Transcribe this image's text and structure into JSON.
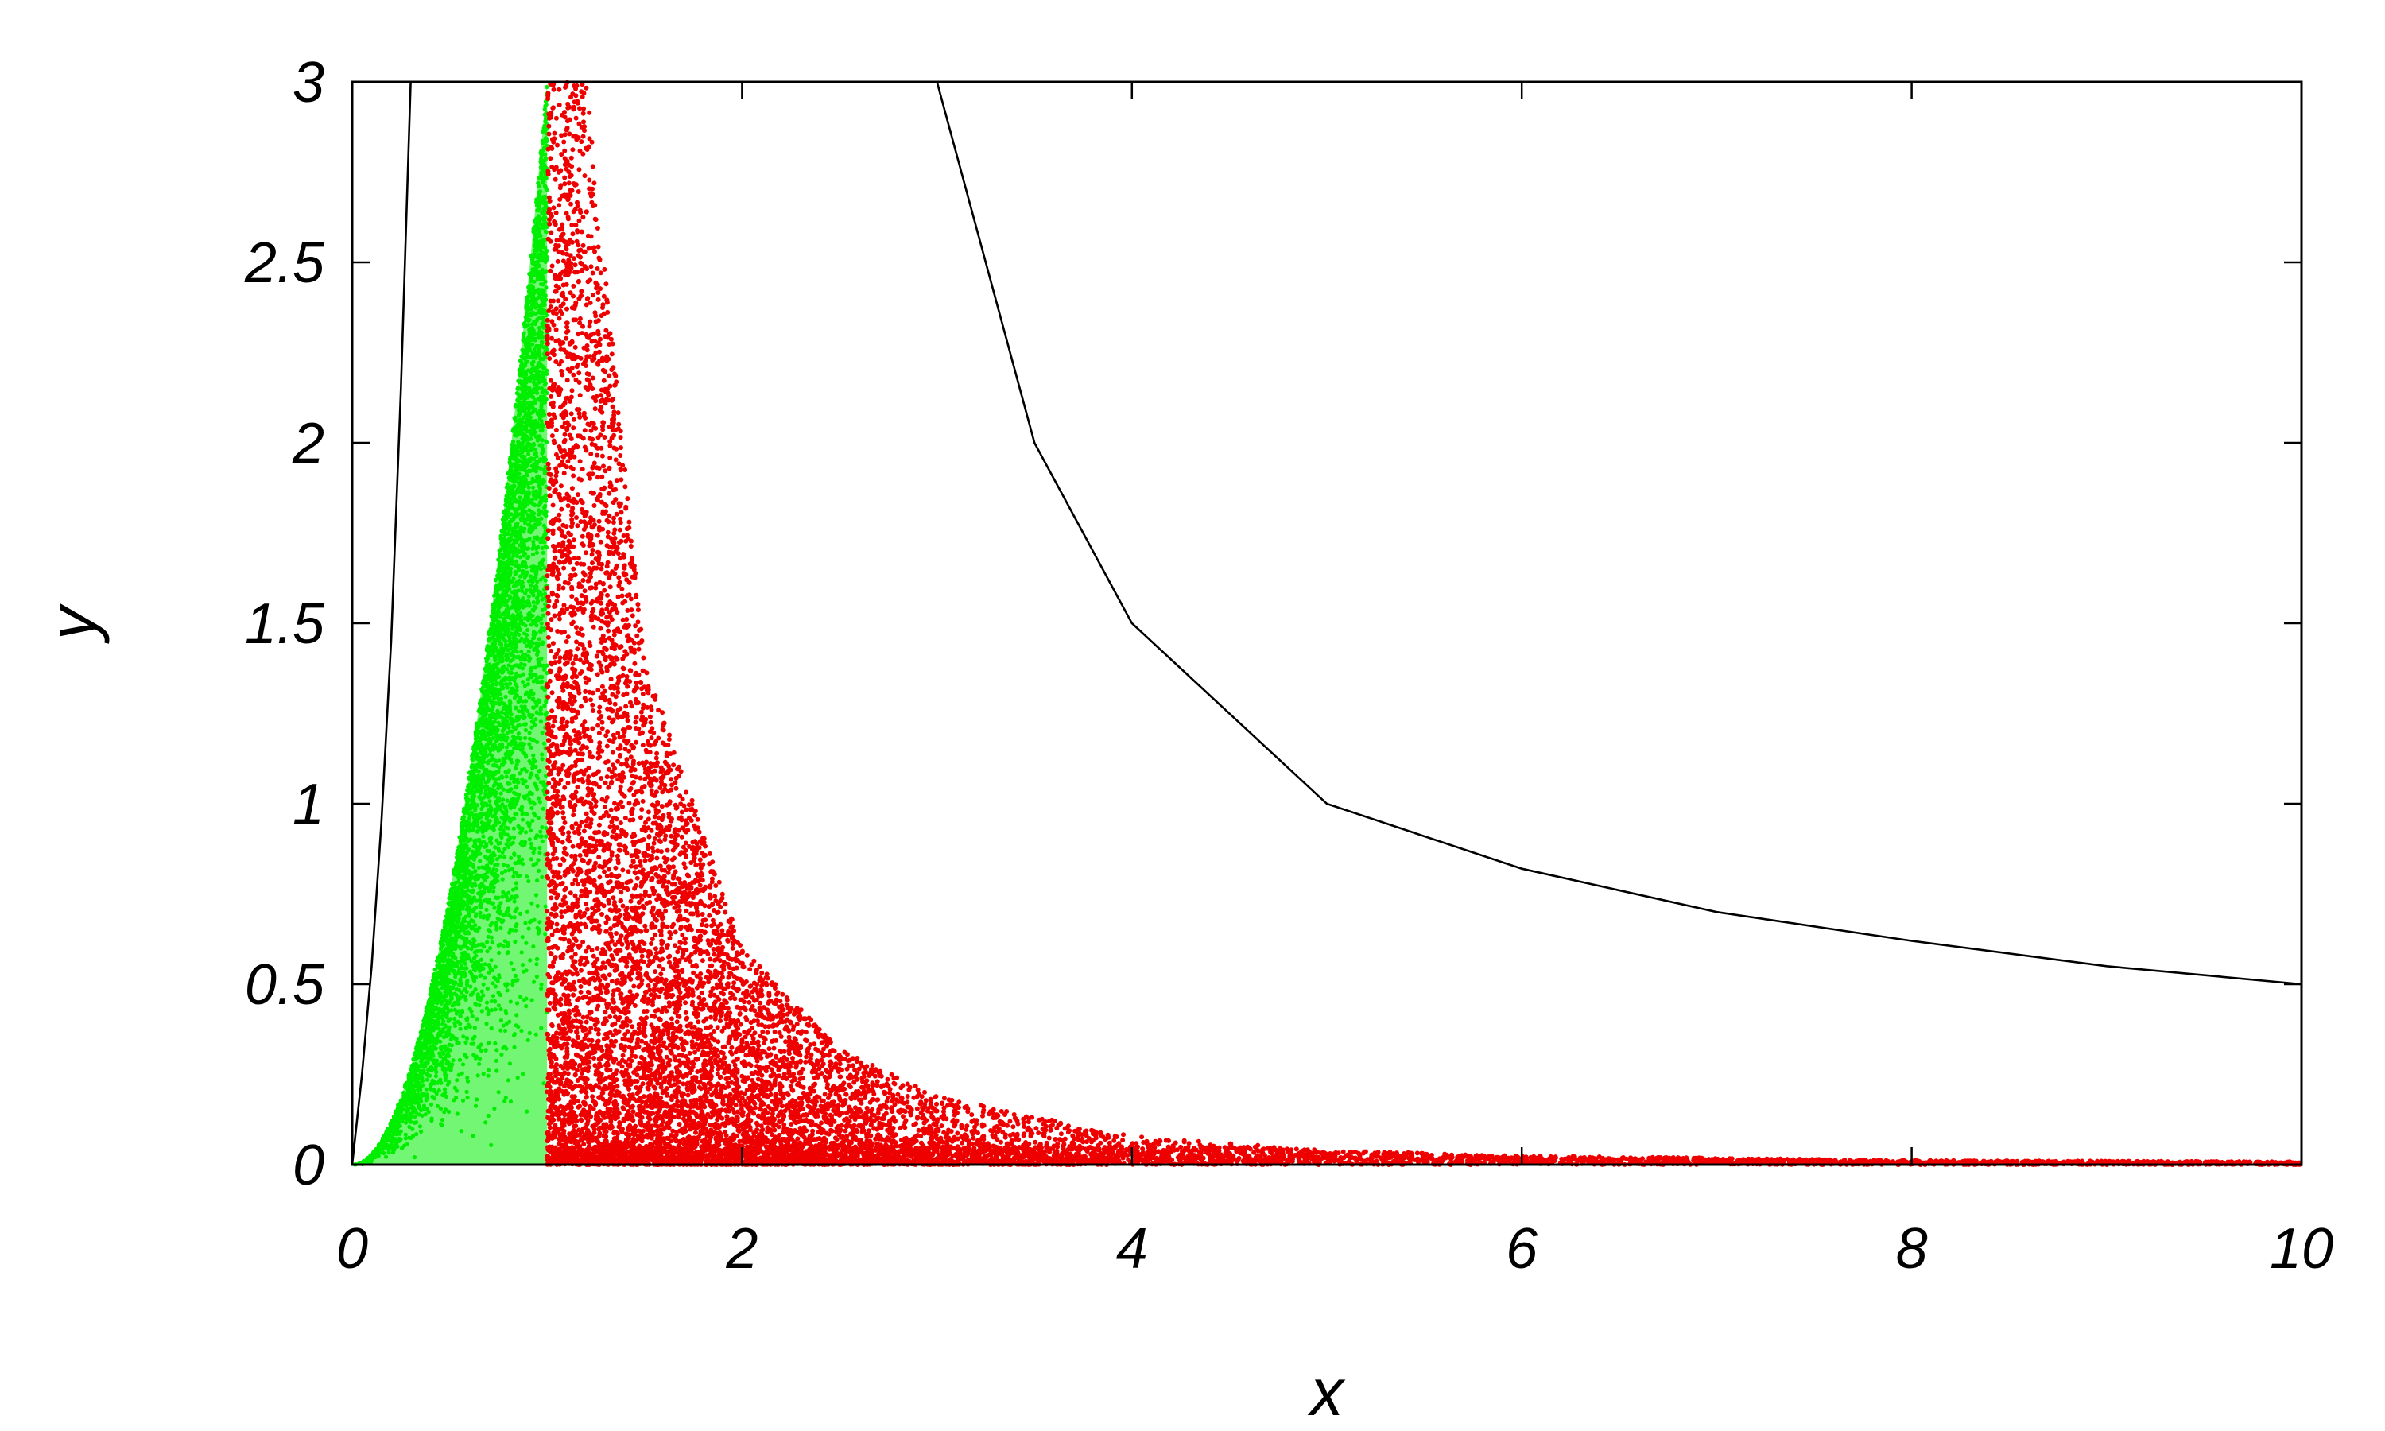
{
  "chart_data": {
    "type": "scatter",
    "title": "",
    "xlabel": "x",
    "ylabel": "y",
    "xlim": [
      0,
      10
    ],
    "ylim": [
      0,
      3
    ],
    "x_ticks": [
      "0",
      "2",
      "4",
      "6",
      "8",
      "10"
    ],
    "y_ticks": [
      "0",
      "0.5",
      "1",
      "1.5",
      "2",
      "2.5",
      "3"
    ],
    "grid": false,
    "legend": "none",
    "colors": {
      "green_points": "#00ee00",
      "red_points": "#ee0000",
      "curves": "#000000",
      "frame": "#000000"
    },
    "series": [
      {
        "style": "points",
        "color": "#00ee00",
        "region": {
          "x": [
            0,
            1
          ],
          "y_min": 0,
          "y_max_at_x1": 3
        },
        "envelope": [
          [
            0,
            0
          ],
          [
            0.2,
            0.13
          ],
          [
            0.4,
            0.48
          ],
          [
            0.6,
            1.05
          ],
          [
            0.8,
            1.9
          ],
          [
            1.0,
            3.0
          ]
        ]
      },
      {
        "style": "points",
        "color": "#ee0000",
        "region": {
          "x": [
            1,
            10
          ],
          "y_min": 0
        },
        "envelope": [
          [
            1.0,
            3.0
          ],
          [
            1.2,
            3.0
          ],
          [
            1.5,
            1.4
          ],
          [
            2.0,
            0.6
          ],
          [
            2.5,
            0.32
          ],
          [
            3.0,
            0.19
          ],
          [
            4.0,
            0.08
          ],
          [
            5.0,
            0.04
          ],
          [
            6.0,
            0.025
          ],
          [
            8.0,
            0.012
          ],
          [
            10.0,
            0.008
          ]
        ]
      },
      {
        "style": "line",
        "color": "#000000",
        "points": [
          [
            0,
            0
          ],
          [
            0.05,
            0.25
          ],
          [
            0.1,
            0.55
          ],
          [
            0.15,
            0.95
          ],
          [
            0.2,
            1.45
          ],
          [
            0.25,
            2.15
          ],
          [
            0.3,
            3.0
          ]
        ]
      },
      {
        "style": "line",
        "color": "#000000",
        "points": [
          [
            3.0,
            3.0
          ],
          [
            3.5,
            2.0
          ],
          [
            4.0,
            1.5
          ],
          [
            5.0,
            1.0
          ],
          [
            6.0,
            0.82
          ],
          [
            7.0,
            0.7
          ],
          [
            8.0,
            0.62
          ],
          [
            9.0,
            0.55
          ],
          [
            10.0,
            0.5
          ]
        ]
      }
    ]
  }
}
